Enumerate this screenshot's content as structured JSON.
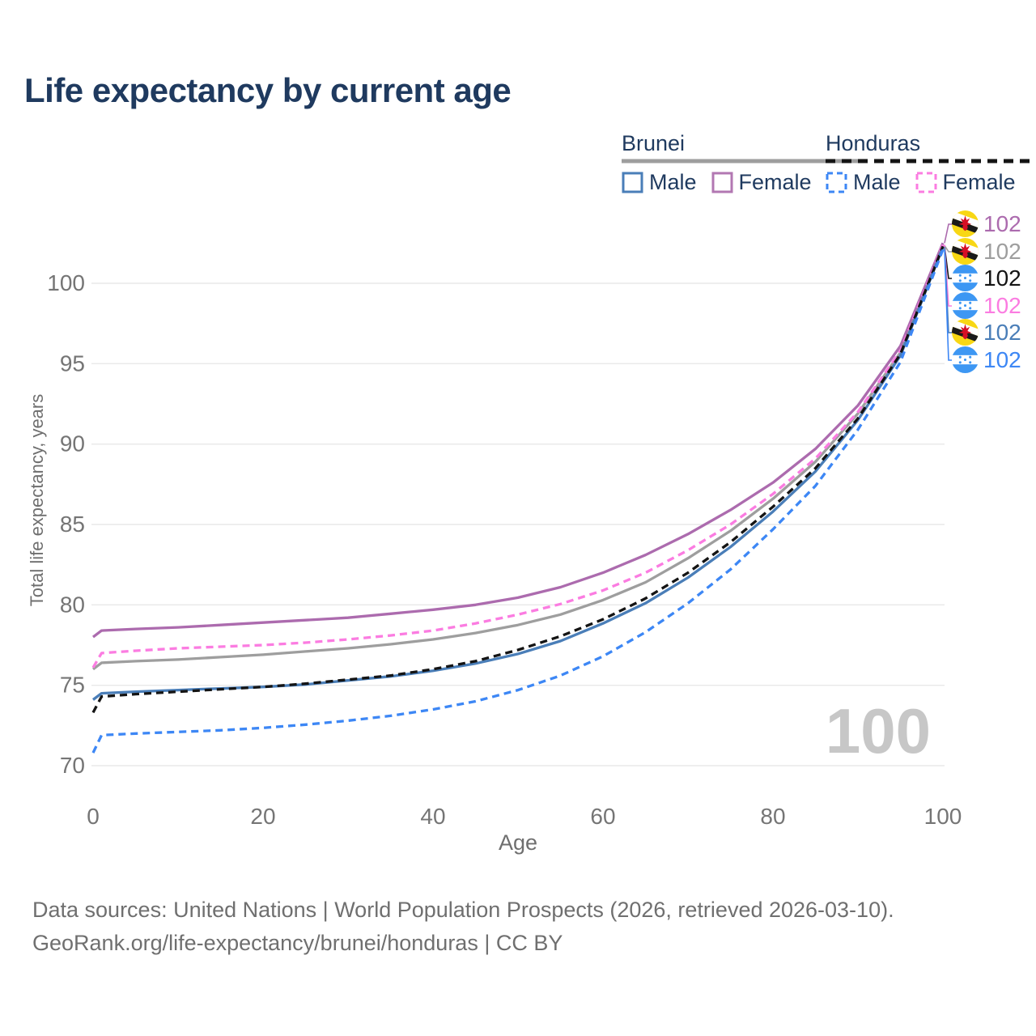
{
  "title": "Life expectancy by current age",
  "watermark": "100",
  "legend": {
    "groups": [
      {
        "country": "Brunei",
        "underline_color": "#9e9e9e",
        "underline_style": "solid",
        "items": [
          {
            "label": "Male",
            "color": "#4a7eb8",
            "style": "solid"
          },
          {
            "label": "Female",
            "color": "#b277b2",
            "style": "solid"
          }
        ]
      },
      {
        "country": "Honduras",
        "underline_color": "#141414",
        "underline_style": "dashed",
        "items": [
          {
            "label": "Male",
            "color": "#3d87f5",
            "style": "dashed"
          },
          {
            "label": "Female",
            "color": "#fb7ce1",
            "style": "dashed"
          }
        ]
      }
    ]
  },
  "chart_data": {
    "type": "line",
    "title": "Life expectancy by current age",
    "xlabel": "Age",
    "ylabel": "Total life expectancy, years",
    "xlim": [
      0,
      100
    ],
    "ylim": [
      69.5,
      103.5
    ],
    "x_ticks": [
      0,
      20,
      40,
      60,
      80,
      100
    ],
    "y_ticks": [
      70,
      75,
      80,
      85,
      90,
      95,
      100
    ],
    "grid": "horizontal",
    "legend_position": "top-right",
    "x": [
      0,
      1,
      5,
      10,
      15,
      20,
      25,
      30,
      35,
      40,
      45,
      50,
      55,
      60,
      65,
      70,
      75,
      80,
      85,
      90,
      95,
      100
    ],
    "series": [
      {
        "name": "Brunei Female",
        "country": "Brunei",
        "sex": "Female",
        "color": "#ac6bae",
        "style": "solid",
        "values": [
          78.0,
          78.4,
          78.5,
          78.6,
          78.75,
          78.9,
          79.05,
          79.2,
          79.45,
          79.7,
          80.0,
          80.45,
          81.1,
          82.0,
          83.1,
          84.4,
          85.9,
          87.6,
          89.7,
          92.4,
          96.1,
          102.5
        ]
      },
      {
        "name": "Brunei Both sexes",
        "country": "Brunei",
        "sex": "Both",
        "color": "#9e9e9e",
        "style": "solid",
        "values": [
          76.0,
          76.4,
          76.5,
          76.6,
          76.75,
          76.9,
          77.1,
          77.3,
          77.55,
          77.85,
          78.25,
          78.75,
          79.4,
          80.3,
          81.4,
          82.9,
          84.6,
          86.6,
          88.9,
          91.9,
          95.7,
          102.35
        ]
      },
      {
        "name": "Honduras Female",
        "country": "Honduras",
        "sex": "Female",
        "color": "#fb7ce1",
        "style": "dashed",
        "values": [
          76.1,
          77.0,
          77.15,
          77.3,
          77.4,
          77.5,
          77.65,
          77.85,
          78.1,
          78.4,
          78.85,
          79.4,
          80.05,
          80.9,
          82.0,
          83.4,
          85.0,
          86.9,
          89.1,
          92.0,
          95.8,
          102.4
        ]
      },
      {
        "name": "Brunei Male",
        "country": "Brunei",
        "sex": "Male",
        "color": "#4a7eb8",
        "style": "solid",
        "values": [
          74.1,
          74.5,
          74.6,
          74.7,
          74.8,
          74.9,
          75.05,
          75.3,
          75.55,
          75.9,
          76.35,
          76.95,
          77.75,
          78.85,
          80.1,
          81.7,
          83.6,
          85.8,
          88.3,
          91.5,
          95.5,
          102.25
        ]
      },
      {
        "name": "Honduras Both sexes",
        "country": "Honduras",
        "sex": "Both",
        "color": "#141414",
        "style": "dashed",
        "values": [
          73.3,
          74.3,
          74.45,
          74.6,
          74.75,
          74.9,
          75.1,
          75.35,
          75.6,
          76.0,
          76.5,
          77.2,
          78.05,
          79.1,
          80.4,
          82.0,
          83.9,
          86.1,
          88.5,
          91.6,
          95.6,
          102.3
        ]
      },
      {
        "name": "Honduras Male",
        "country": "Honduras",
        "sex": "Male",
        "color": "#3d87f5",
        "style": "dashed",
        "values": [
          70.8,
          71.9,
          72.0,
          72.1,
          72.2,
          72.35,
          72.55,
          72.8,
          73.1,
          73.5,
          74.0,
          74.7,
          75.6,
          76.8,
          78.3,
          80.1,
          82.2,
          84.7,
          87.4,
          90.9,
          95.1,
          102.1
        ]
      }
    ],
    "end_labels": [
      {
        "series": "Brunei Female",
        "value": "102"
      },
      {
        "series": "Brunei Both sexes",
        "value": "102"
      },
      {
        "series": "Honduras Both sexes",
        "value": "102"
      },
      {
        "series": "Honduras Female",
        "value": "102"
      },
      {
        "series": "Brunei Male",
        "value": "102"
      },
      {
        "series": "Honduras Male",
        "value": "102"
      }
    ]
  },
  "footer": {
    "line1": "Data sources: United Nations | World Population Prospects (2026, retrieved 2026-03-10).",
    "line2": "GeoRank.org/life-expectancy/brunei/honduras | CC BY"
  }
}
